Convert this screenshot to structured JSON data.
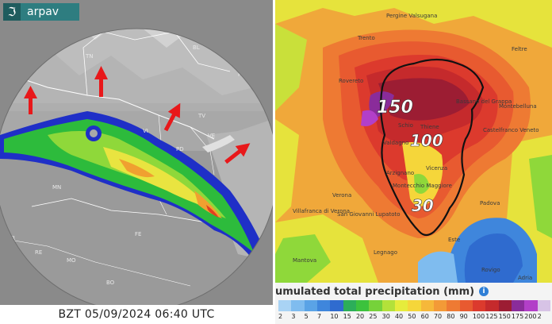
{
  "logo": {
    "mark": "ℑ",
    "text": "arpav",
    "mark_icon": "arpav-logo-icon"
  },
  "radar": {
    "timestamp": "BZT 05/09/2024 06:40 UTC",
    "province_labels": [
      "TN",
      "BL",
      "PN",
      "TV",
      "VI",
      "PD",
      "VE",
      "MN",
      "FE",
      "PR",
      "RE",
      "MO",
      "BO"
    ]
  },
  "precip": {
    "legend_title": "umulated total precipitation (mm)",
    "contour_labels": [
      "150",
      "100",
      "30"
    ],
    "legend_ticks": [
      "2",
      "3",
      "5",
      "7",
      "10",
      "15",
      "20",
      "25",
      "30",
      "40",
      "50",
      "60",
      "70",
      "80",
      "90",
      "100",
      "125",
      "150",
      "175",
      "200",
      "2"
    ],
    "legend_colors": [
      "#a9d3f4",
      "#7fbcef",
      "#5aa3e6",
      "#3f86dc",
      "#2f6bcf",
      "#2cae5a",
      "#3cc23d",
      "#76d23a",
      "#b3e13a",
      "#e6ec3c",
      "#f5d63a",
      "#f6b83a",
      "#f39a37",
      "#ee7a33",
      "#e85a30",
      "#dc3a2d",
      "#c52a2c",
      "#9c1d33",
      "#8a2c9a",
      "#b23fc8",
      "#d7c3e6"
    ],
    "cities": [
      "Trento",
      "Pergine Valsugana",
      "Feltre",
      "Rovereto",
      "Bassano del Grappa",
      "Montebelluna",
      "Schio",
      "Thiene",
      "Castelfranco Veneto",
      "Valdagno",
      "Arzignano",
      "Vicenza",
      "Montecchio Maggiore",
      "Verona",
      "Villafranca di Verona",
      "San Giovanni Lupatoto",
      "Padova",
      "Legnago",
      "Este",
      "Mantova",
      "Rovigo",
      "Adria"
    ]
  }
}
